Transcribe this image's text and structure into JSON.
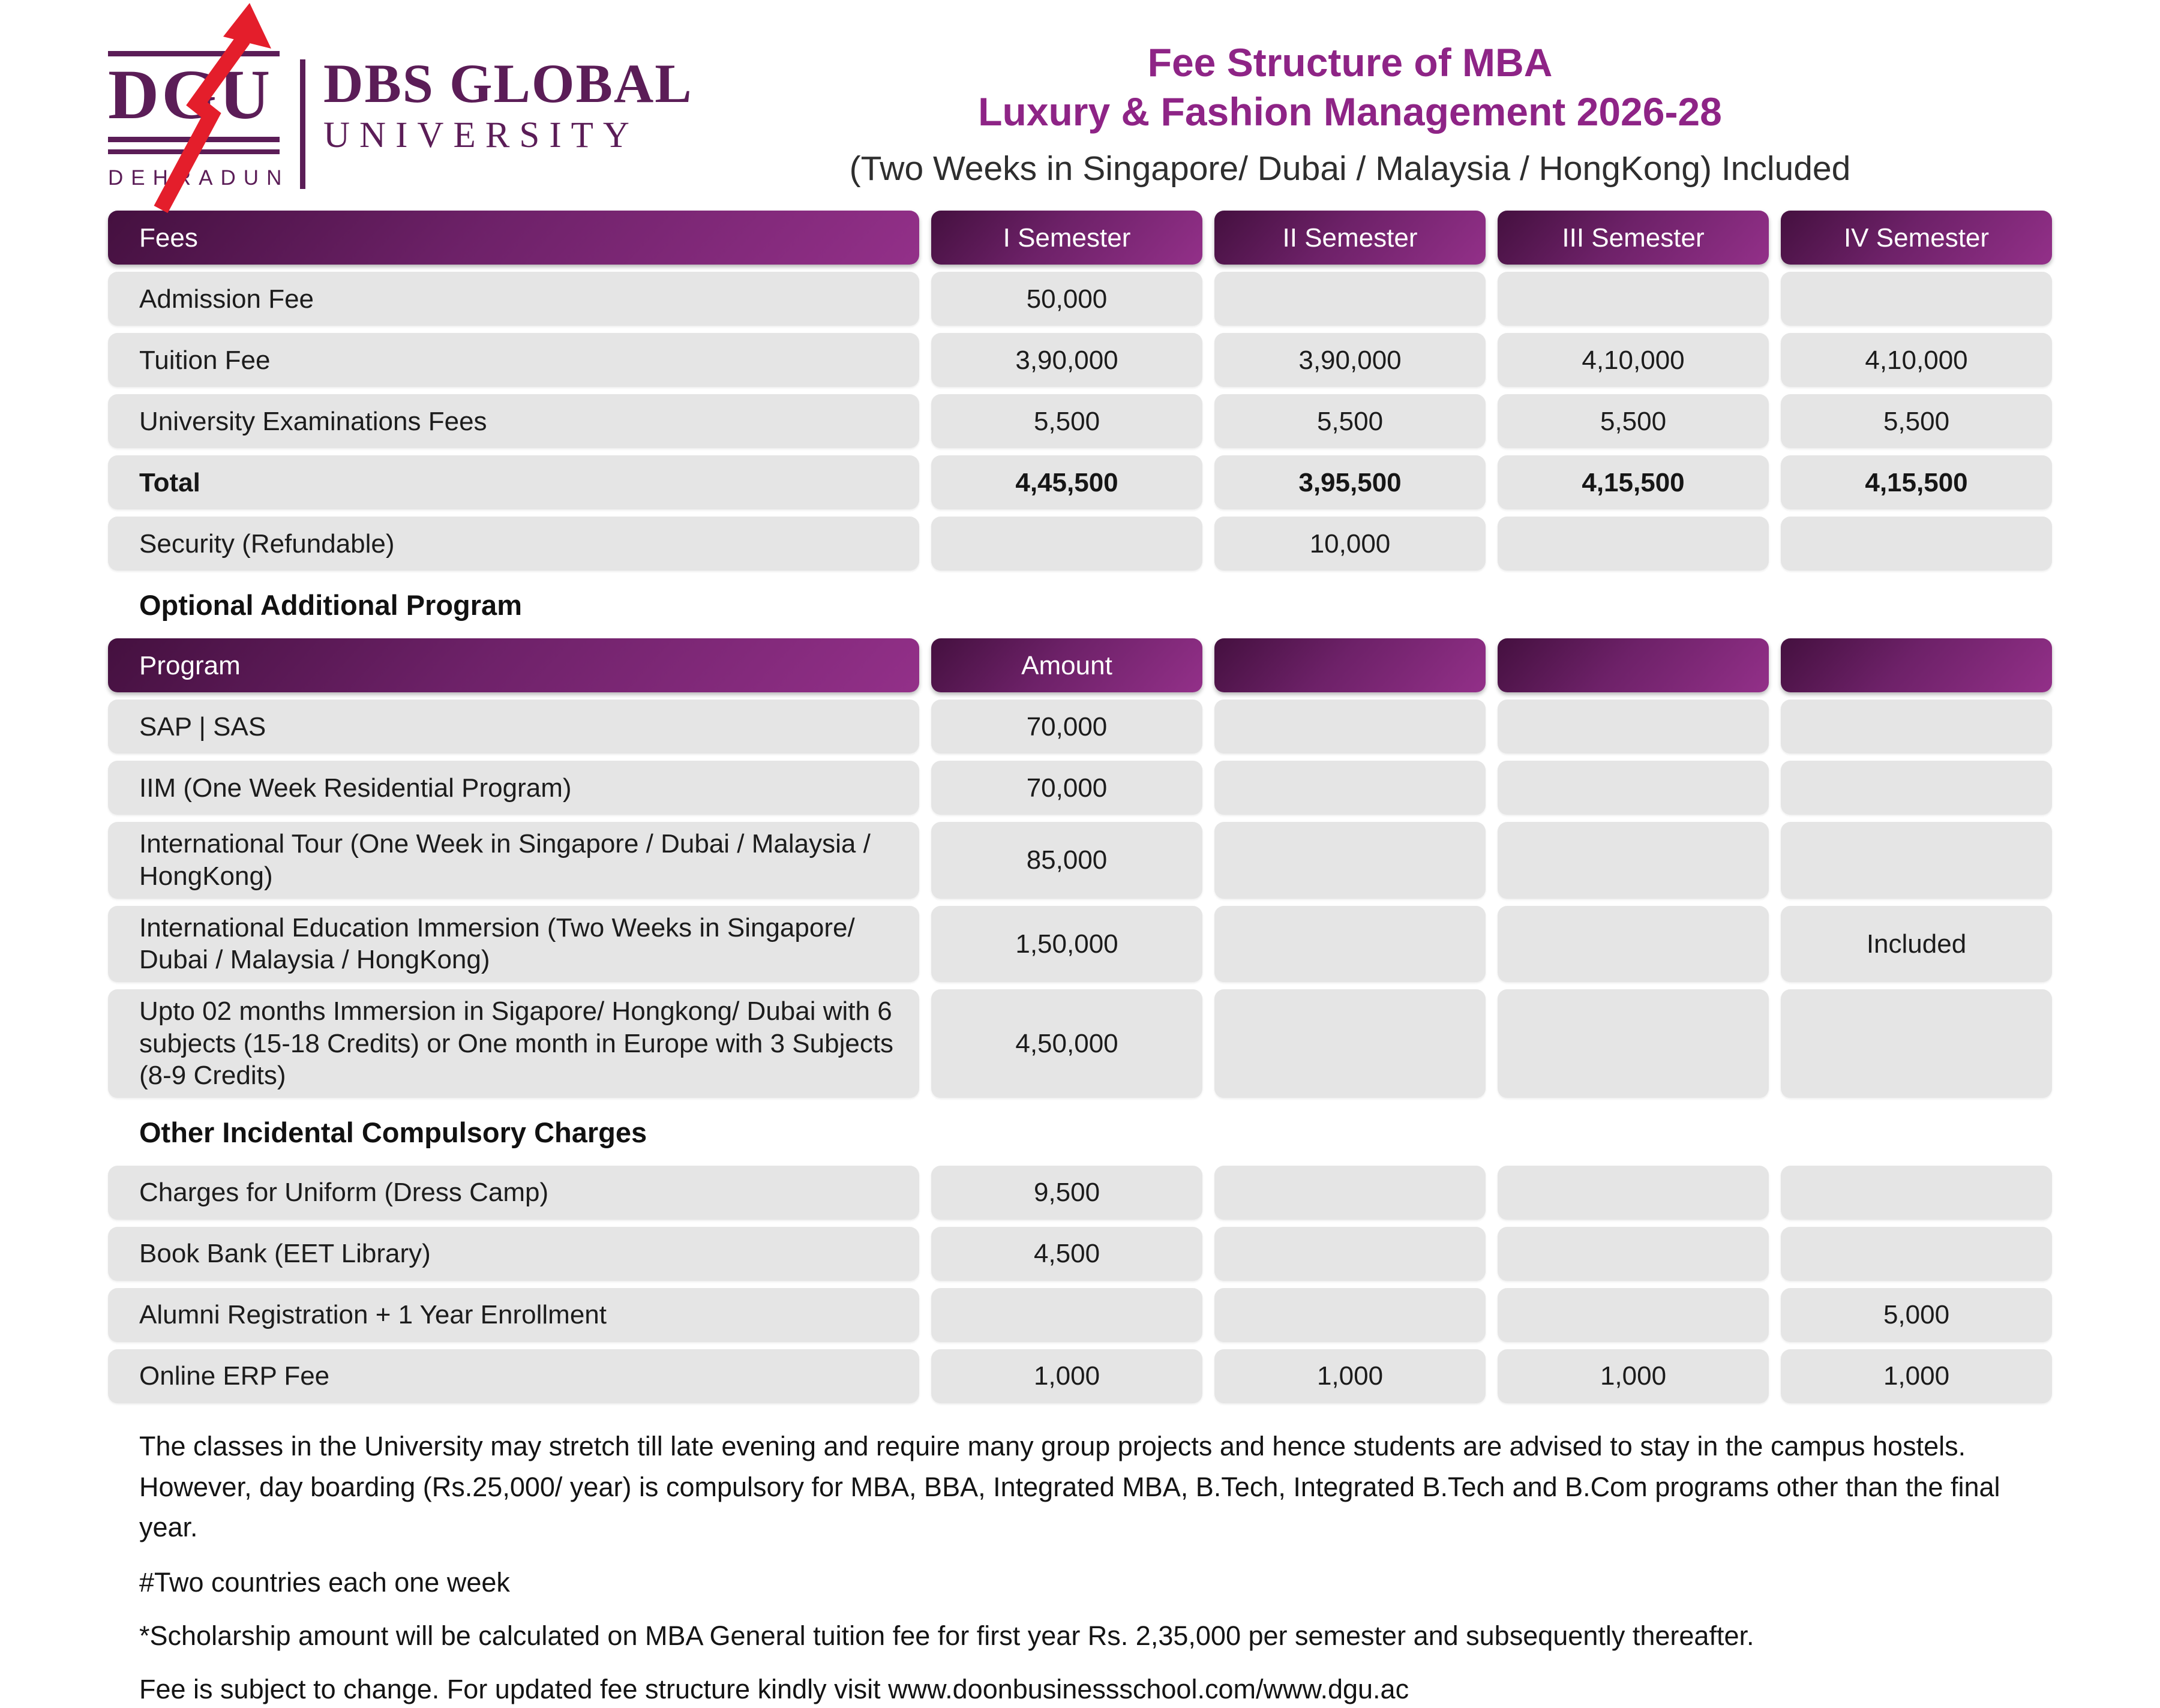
{
  "logo": {
    "acronym": "DGU",
    "city": "DEHRADUN",
    "name_line1": "DBS GLOBAL",
    "name_line2": "UNIVERSITY"
  },
  "header": {
    "title_line1": "Fee Structure of MBA",
    "title_line2": "Luxury & Fashion Management 2026-28",
    "subtitle": "(Two Weeks in Singapore/ Dubai / Malaysia / HongKong)  Included"
  },
  "fees_table": {
    "columns": [
      "Fees",
      "I Semester",
      "II Semester",
      "III Semester",
      "IV Semester"
    ],
    "rows": [
      {
        "label": "Admission Fee",
        "values": [
          "50,000",
          "",
          "",
          ""
        ],
        "bold": false
      },
      {
        "label": "Tuition Fee",
        "values": [
          "3,90,000",
          "3,90,000",
          "4,10,000",
          "4,10,000"
        ],
        "bold": false
      },
      {
        "label": "University Examinations Fees",
        "values": [
          "5,500",
          "5,500",
          "5,500",
          "5,500"
        ],
        "bold": false
      },
      {
        "label": "Total",
        "values": [
          "4,45,500",
          "3,95,500",
          "4,15,500",
          "4,15,500"
        ],
        "bold": true
      },
      {
        "label": "Security (Refundable)",
        "values": [
          "",
          "10,000",
          "",
          ""
        ],
        "bold": false
      }
    ]
  },
  "optional_section": {
    "heading": "Optional Additional Program",
    "table": {
      "columns": [
        "Program",
        "Amount",
        "",
        "",
        ""
      ],
      "rows": [
        {
          "label": "SAP | SAS",
          "values": [
            "70,000",
            "",
            "",
            ""
          ],
          "bold": false
        },
        {
          "label": "IIM (One Week Residential Program)",
          "values": [
            "70,000",
            "",
            "",
            ""
          ],
          "bold": false
        },
        {
          "label": "International Tour (One Week in Singapore / Dubai / Malaysia / HongKong)",
          "values": [
            "85,000",
            "",
            "",
            ""
          ],
          "bold": false
        },
        {
          "label": "International Education Immersion (Two Weeks in Singapore/ Dubai / Malaysia / HongKong)",
          "values": [
            "1,50,000",
            "",
            "",
            "Included"
          ],
          "bold": false
        },
        {
          "label": "Upto 02 months Immersion in Sigapore/ Hongkong/ Dubai with 6 subjects (15-18 Credits) or One month in Europe with 3 Subjects (8-9 Credits)",
          "values": [
            "4,50,000",
            "",
            "",
            ""
          ],
          "bold": false
        }
      ]
    }
  },
  "incidental_section": {
    "heading": "Other Incidental Compulsory Charges",
    "table": {
      "rows": [
        {
          "label": "Charges for Uniform (Dress Camp)",
          "values": [
            "9,500",
            "",
            "",
            ""
          ],
          "bold": false
        },
        {
          "label": "Book Bank (EET Library)",
          "values": [
            "4,500",
            "",
            "",
            ""
          ],
          "bold": false
        },
        {
          "label": "Alumni Registration +  1 Year Enrollment",
          "values": [
            "",
            "",
            "",
            "5,000"
          ],
          "bold": false
        },
        {
          "label": "Online ERP Fee",
          "values": [
            "1,000",
            "1,000",
            "1,000",
            "1,000"
          ],
          "bold": false
        }
      ]
    }
  },
  "notes": {
    "line1": "The classes in the University may stretch till late evening and require many group projects and hence students are advised to stay in the campus hostels.",
    "line2": "However, day boarding (Rs.25,000/ year) is compulsory for MBA, BBA, Integrated MBA, B.Tech, Integrated B.Tech and B.Com programs other than the final year.",
    "hash_note": "#Two countries each one week",
    "scholarship_note": "*Scholarship amount will be calculated on MBA General tuition fee for first year Rs. 2,35,000 per semester and subsequently thereafter.",
    "change_note": "Fee is subject to change. For updated fee structure kindly visit www.doonbusinessschool.com/www.dgu.ac"
  },
  "colors": {
    "brand_purple": "#5b1d57",
    "title_magenta": "#8e2486",
    "header_gradient_dark": "#44103f",
    "header_gradient_light": "#933089",
    "row_gray": "#e5e5e5",
    "arrow_red": "#e41e2b",
    "subtitle_gray": "#2e2e2e"
  }
}
